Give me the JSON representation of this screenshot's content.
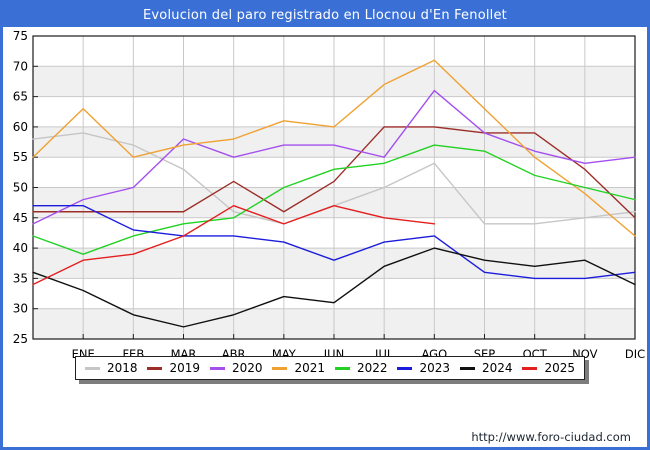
{
  "window": {
    "title": "Evolucion del paro registrado en Llocnou d'En Fenollet"
  },
  "footer": {
    "url": "http://www.foro-ciudad.com"
  },
  "colors": {
    "frame_blue": "#3a70d6",
    "plot_band_grey": "#f0f0f0",
    "gridline": "#c9c9c9",
    "plot_border": "#1a1a1a",
    "title_text": "#ffffff"
  },
  "chart_data": {
    "type": "line",
    "title": "Evolucion del paro registrado en Llocnou d'En Fenollet",
    "xlabel": "",
    "ylabel": "",
    "ylim": [
      25,
      75
    ],
    "yticks": [
      25,
      30,
      35,
      40,
      45,
      50,
      55,
      60,
      65,
      70,
      75
    ],
    "grid": true,
    "legend_position": "bottom",
    "categories": [
      "ENE",
      "FEB",
      "MAR",
      "ABR",
      "MAY",
      "JUN",
      "JUL",
      "AGO",
      "SEP",
      "OCT",
      "NOV",
      "DIC"
    ],
    "note": "Each series has a leading unlabeled point plotted on the y-axis (previous December) followed by monthly values ENE-DIC. 2025 series ends at AGO.",
    "series": [
      {
        "name": "2018",
        "color": "#c6c6c6",
        "values": [
          58,
          59,
          57,
          53,
          46,
          44,
          47,
          50,
          54,
          44,
          44,
          45,
          46
        ]
      },
      {
        "name": "2019",
        "color": "#9c2e28",
        "values": [
          46,
          46,
          46,
          46,
          51,
          46,
          51,
          60,
          60,
          59,
          59,
          53,
          45
        ]
      },
      {
        "name": "2020",
        "color": "#a44fee",
        "values": [
          44,
          48,
          50,
          58,
          55,
          57,
          57,
          55,
          66,
          59,
          56,
          54,
          55
        ]
      },
      {
        "name": "2021",
        "color": "#f0a132",
        "values": [
          55,
          63,
          55,
          57,
          58,
          61,
          60,
          67,
          71,
          63,
          55,
          49,
          42
        ]
      },
      {
        "name": "2022",
        "color": "#22d122",
        "values": [
          42,
          39,
          42,
          44,
          45,
          50,
          53,
          54,
          57,
          56,
          52,
          50,
          48
        ]
      },
      {
        "name": "2023",
        "color": "#1c1cdd",
        "values": [
          47,
          47,
          43,
          42,
          42,
          41,
          38,
          41,
          42,
          36,
          35,
          35,
          36
        ]
      },
      {
        "name": "2024",
        "color": "#101010",
        "values": [
          36,
          33,
          29,
          27,
          29,
          32,
          31,
          37,
          40,
          38,
          37,
          38,
          34
        ]
      },
      {
        "name": "2025",
        "color": "#e41f1f",
        "values": [
          34,
          38,
          39,
          42,
          47,
          44,
          47,
          45,
          44
        ]
      }
    ]
  }
}
